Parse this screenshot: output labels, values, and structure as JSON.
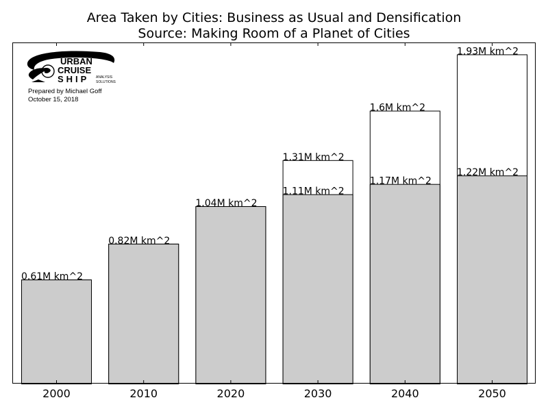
{
  "title_line1": "Area Taken by Cities: Business as Usual and Densification",
  "title_line2": "Source: Making Room of a Planet of Cities",
  "logo": {
    "line1": "URBAN",
    "line2": "CRUISE",
    "line3": "SHIP",
    "tag1": "ANALYSIS",
    "tag2": "SOLUTIONS"
  },
  "credit": {
    "prepared_by": "Prepared by Michael Goff",
    "date": "October 15, 2018"
  },
  "chart_data": {
    "type": "bar",
    "categories": [
      "2000",
      "2010",
      "2020",
      "2030",
      "2040",
      "2050"
    ],
    "series": [
      {
        "values": [
          0.61,
          0.82,
          1.04,
          1.31,
          1.6,
          1.93
        ],
        "labels": [
          "",
          "",
          "",
          "1.31M km^2",
          "1.6M km^2",
          "1.93M km^2"
        ],
        "color": "#ffffff"
      },
      {
        "values": [
          0.61,
          0.82,
          1.04,
          1.11,
          1.17,
          1.22
        ],
        "labels": [
          "0.61M km^2",
          "0.82M km^2",
          "1.04M km^2",
          "1.11M km^2",
          "1.17M km^2",
          "1.22M km^2"
        ],
        "color": "#cccccc"
      }
    ],
    "ylim": [
      0,
      2.0
    ],
    "xlabel": "",
    "ylabel": "",
    "grid": false
  }
}
